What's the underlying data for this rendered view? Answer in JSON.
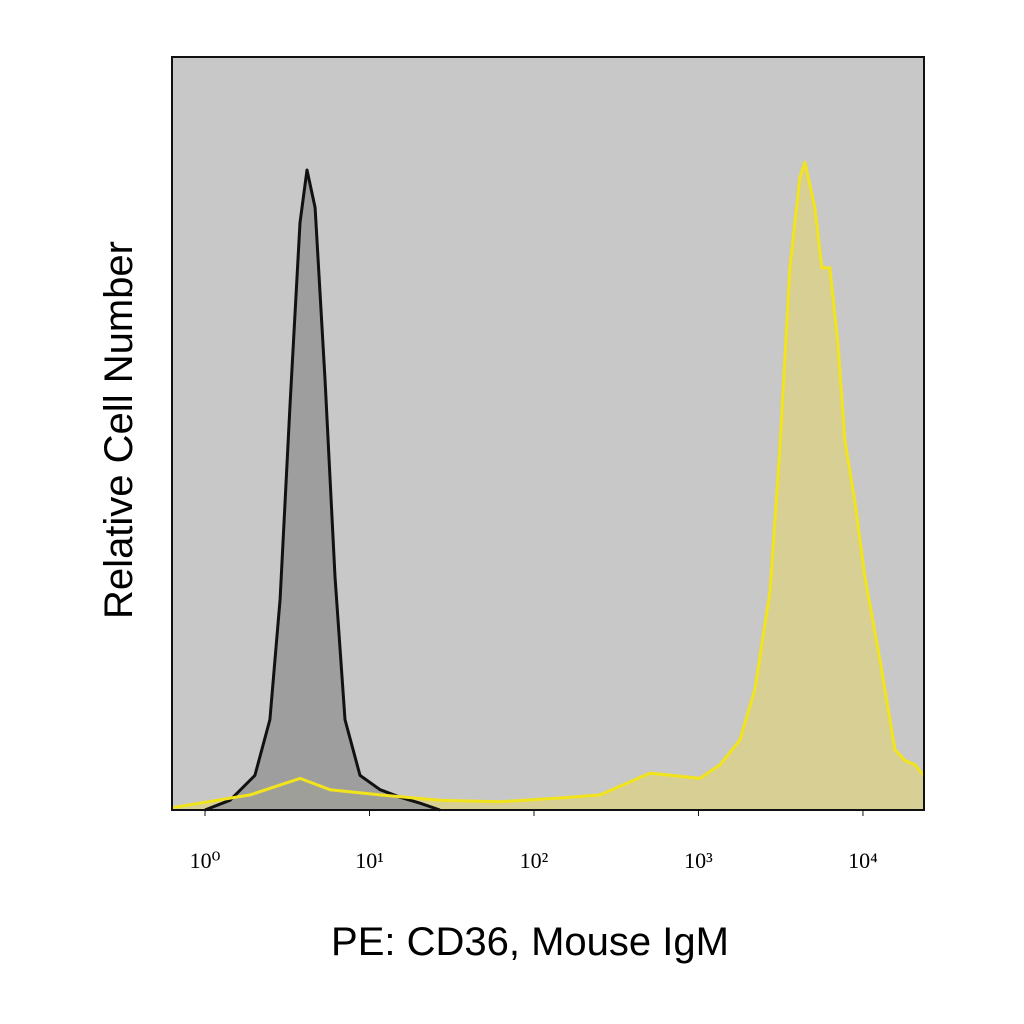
{
  "chart_data": {
    "type": "area",
    "xlabel": "PE: CD36, Mouse IgM",
    "ylabel": "Relative Cell Number",
    "xscale": "log",
    "xlim": [
      0.63,
      23500
    ],
    "ylim": [
      0,
      100
    ],
    "xticks": [
      {
        "value": 1,
        "label": "10⁰"
      },
      {
        "value": 10,
        "label": "10¹"
      },
      {
        "value": 100,
        "label": "10²"
      },
      {
        "value": 1000,
        "label": "10³"
      },
      {
        "value": 10000,
        "label": "10⁴"
      }
    ],
    "background": "#c8c8c8",
    "series": [
      {
        "color": "#f2e41c",
        "fill": "#d8cf8e",
        "x": [
          0.63,
          1.88,
          3.78,
          5.75,
          11.6,
          26.8,
          62.1,
          144,
          252,
          507,
          1021,
          1352,
          1787,
          2204,
          2721,
          3128,
          3597,
          4139,
          4436,
          5105,
          5627,
          6295,
          7040,
          7776,
          8935,
          10280,
          12680,
          15650,
          17990,
          20700,
          23500
        ],
        "values": [
          0.3,
          2,
          4.2,
          2.7,
          2,
          1.3,
          1.1,
          1.6,
          2,
          4.9,
          4.2,
          6,
          9.3,
          16,
          29,
          48,
          72,
          84,
          86,
          80,
          72,
          72,
          62,
          49,
          41,
          31,
          20,
          8,
          6.6,
          6,
          4.6
        ]
      },
      {
        "color": "#111111",
        "fill": "#999999",
        "x": [
          1,
          1.42,
          2.01,
          2.48,
          2.86,
          3.29,
          3.78,
          4.17,
          4.67,
          5.37,
          6.17,
          7.1,
          8.75,
          11.6,
          15.3,
          20.3,
          26.8
        ],
        "values": [
          0,
          1.3,
          4.6,
          12,
          28,
          54,
          78,
          85,
          80,
          57,
          31,
          12,
          4.6,
          2.7,
          1.7,
          0.9,
          0
        ]
      }
    ]
  }
}
